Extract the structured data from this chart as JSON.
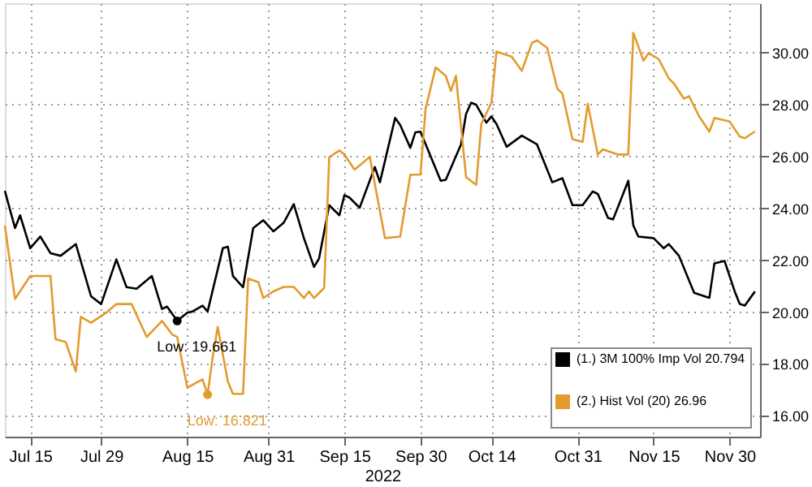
{
  "chart_data": {
    "type": "line",
    "xlabel": "2022",
    "x": [
      "2022-07-10",
      "2022-07-12",
      "2022-07-13",
      "2022-07-15",
      "2022-07-17",
      "2022-07-19",
      "2022-07-21",
      "2022-07-24",
      "2022-07-27",
      "2022-07-29",
      "2022-08-01",
      "2022-08-03",
      "2022-08-05",
      "2022-08-08",
      "2022-08-10",
      "2022-08-11",
      "2022-08-13",
      "2022-08-15",
      "2022-08-16",
      "2022-08-18",
      "2022-08-19",
      "2022-08-22",
      "2022-08-23",
      "2022-08-24",
      "2022-08-26",
      "2022-08-28",
      "2022-08-30",
      "2022-09-01",
      "2022-09-03",
      "2022-09-05",
      "2022-09-07",
      "2022-09-09",
      "2022-09-10",
      "2022-09-12",
      "2022-09-14",
      "2022-09-15",
      "2022-09-16",
      "2022-09-18",
      "2022-09-21",
      "2022-09-22",
      "2022-09-25",
      "2022-09-26",
      "2022-09-28",
      "2022-09-29",
      "2022-09-30",
      "2022-10-04",
      "2022-10-05",
      "2022-10-08",
      "2022-10-09",
      "2022-10-10",
      "2022-10-11",
      "2022-10-13",
      "2022-10-14",
      "2022-10-15",
      "2022-10-17",
      "2022-10-20",
      "2022-10-23",
      "2022-10-25",
      "2022-10-26",
      "2022-10-28",
      "2022-10-30",
      "2022-11-01",
      "2022-11-03",
      "2022-11-04",
      "2022-11-06",
      "2022-11-07",
      "2022-11-10",
      "2022-11-11",
      "2022-11-12",
      "2022-11-15",
      "2022-11-17",
      "2022-11-18",
      "2022-11-20",
      "2022-11-23",
      "2022-11-26",
      "2022-11-27",
      "2022-11-29",
      "2022-12-01",
      "2022-12-02",
      "2022-12-03",
      "2022-12-05"
    ],
    "series": [
      {
        "name": "(1.) 3M 100% Imp Vol 20.794",
        "color": "#000000",
        "values": [
          24.67,
          23.24,
          23.73,
          22.46,
          22.91,
          22.27,
          22.17,
          22.62,
          20.61,
          20.31,
          22.03,
          20.96,
          20.9,
          21.39,
          20.12,
          20.21,
          19.661,
          19.98,
          20.02,
          20.25,
          20.02,
          22.46,
          22.52,
          21.39,
          20.96,
          23.24,
          23.54,
          23.11,
          23.44,
          24.16,
          22.85,
          21.74,
          22.07,
          24.12,
          23.73,
          24.51,
          24.41,
          24.02,
          25.59,
          25.0,
          27.48,
          27.21,
          26.33,
          26.93,
          26.95,
          25.06,
          25.1,
          26.46,
          27.64,
          28.07,
          27.99,
          27.3,
          27.54,
          27.25,
          26.37,
          26.8,
          26.46,
          25.49,
          25.0,
          25.16,
          24.12,
          24.12,
          24.65,
          24.55,
          23.63,
          23.57,
          25.06,
          23.34,
          22.91,
          22.85,
          22.46,
          22.62,
          22.17,
          20.74,
          20.55,
          21.88,
          21.97,
          20.8,
          20.31,
          20.25,
          20.794
        ]
      },
      {
        "name": "(2.) Hist Vol (20)     26.96",
        "color": "#e39b2e",
        "x": [
          "2022-07-10",
          "2022-07-12",
          "2022-07-15",
          "2022-07-19",
          "2022-07-20",
          "2022-07-22",
          "2022-07-24",
          "2022-07-25",
          "2022-07-27",
          "2022-07-30",
          "2022-08-01",
          "2022-08-04",
          "2022-08-07",
          "2022-08-10",
          "2022-08-12",
          "2022-08-13",
          "2022-08-15",
          "2022-08-18",
          "2022-08-19",
          "2022-08-20",
          "2022-08-21",
          "2022-08-23",
          "2022-08-24",
          "2022-08-26",
          "2022-08-27",
          "2022-08-29",
          "2022-08-30",
          "2022-09-01",
          "2022-09-03",
          "2022-09-05",
          "2022-09-07",
          "2022-09-08",
          "2022-09-09",
          "2022-09-11",
          "2022-09-12",
          "2022-09-14",
          "2022-09-15",
          "2022-09-17",
          "2022-09-20",
          "2022-09-23",
          "2022-09-26",
          "2022-09-28",
          "2022-09-30",
          "2022-10-01",
          "2022-10-03",
          "2022-10-05",
          "2022-10-06",
          "2022-10-07",
          "2022-10-09",
          "2022-10-11",
          "2022-10-12",
          "2022-10-14",
          "2022-10-15",
          "2022-10-18",
          "2022-10-20",
          "2022-10-22",
          "2022-10-23",
          "2022-10-25",
          "2022-10-27",
          "2022-10-28",
          "2022-10-30",
          "2022-11-01",
          "2022-11-02",
          "2022-11-04",
          "2022-11-05",
          "2022-11-08",
          "2022-11-10",
          "2022-11-11",
          "2022-11-13",
          "2022-11-14",
          "2022-11-16",
          "2022-11-18",
          "2022-11-19",
          "2022-11-21",
          "2022-11-22",
          "2022-11-24",
          "2022-11-26",
          "2022-11-27",
          "2022-11-30",
          "2022-12-02",
          "2022-12-03",
          "2022-12-05"
        ],
        "values": [
          23.34,
          20.51,
          21.39,
          21.39,
          18.95,
          18.85,
          17.71,
          19.82,
          19.59,
          19.98,
          20.31,
          20.31,
          19.04,
          19.66,
          19.14,
          19.04,
          17.09,
          17.41,
          16.821,
          18.26,
          19.43,
          17.32,
          16.85,
          16.85,
          21.29,
          21.16,
          20.54,
          20.8,
          20.97,
          20.97,
          20.54,
          20.8,
          20.54,
          20.93,
          25.97,
          26.23,
          26.07,
          25.49,
          25.98,
          22.85,
          22.91,
          25.29,
          25.3,
          27.83,
          29.43,
          29.1,
          28.52,
          29.1,
          25.2,
          24.9,
          27.25,
          28.07,
          30.04,
          29.84,
          29.3,
          30.37,
          30.47,
          30.18,
          28.61,
          28.42,
          26.66,
          26.56,
          28.03,
          26.07,
          26.27,
          26.07,
          26.07,
          30.76,
          29.69,
          29.98,
          29.75,
          29.0,
          28.81,
          28.22,
          28.32,
          27.54,
          26.95,
          27.48,
          27.34,
          26.76,
          26.7,
          26.96
        ]
      }
    ],
    "annotations": [
      {
        "text": "Low: 19.661",
        "x": "2022-08-13",
        "y": 19.661
      },
      {
        "text": "Low: 16.821",
        "x": "2022-08-19",
        "y": 16.821
      }
    ],
    "xlim": [
      "2022-07-10",
      "2022-12-06"
    ],
    "xticks": [
      {
        "value": "2022-07-15",
        "label": "Jul 15"
      },
      {
        "value": "2022-07-29",
        "label": "Jul 29"
      },
      {
        "value": "2022-08-15",
        "label": "Aug 15"
      },
      {
        "value": "2022-08-31",
        "label": "Aug 31"
      },
      {
        "value": "2022-09-15",
        "label": "Sep 15"
      },
      {
        "value": "2022-09-30",
        "label": "Sep 30"
      },
      {
        "value": "2022-10-14",
        "label": "Oct 14"
      },
      {
        "value": "2022-10-31",
        "label": "Oct 31"
      },
      {
        "value": "2022-11-15",
        "label": "Nov 15"
      },
      {
        "value": "2022-11-30",
        "label": "Nov 30"
      }
    ],
    "ylim": [
      15.2,
      31.9
    ],
    "yticks": [
      {
        "value": 16,
        "label": "16.00"
      },
      {
        "value": 18,
        "label": "18.00"
      },
      {
        "value": 20,
        "label": "20.00"
      },
      {
        "value": 22,
        "label": "22.00"
      },
      {
        "value": 24,
        "label": "24.00"
      },
      {
        "value": 26,
        "label": "26.00"
      },
      {
        "value": 28,
        "label": "28.00"
      },
      {
        "value": 30,
        "label": "30.00"
      }
    ],
    "grid": true,
    "legend": "bottom right",
    "marker": "none",
    "line_style": "solid"
  }
}
